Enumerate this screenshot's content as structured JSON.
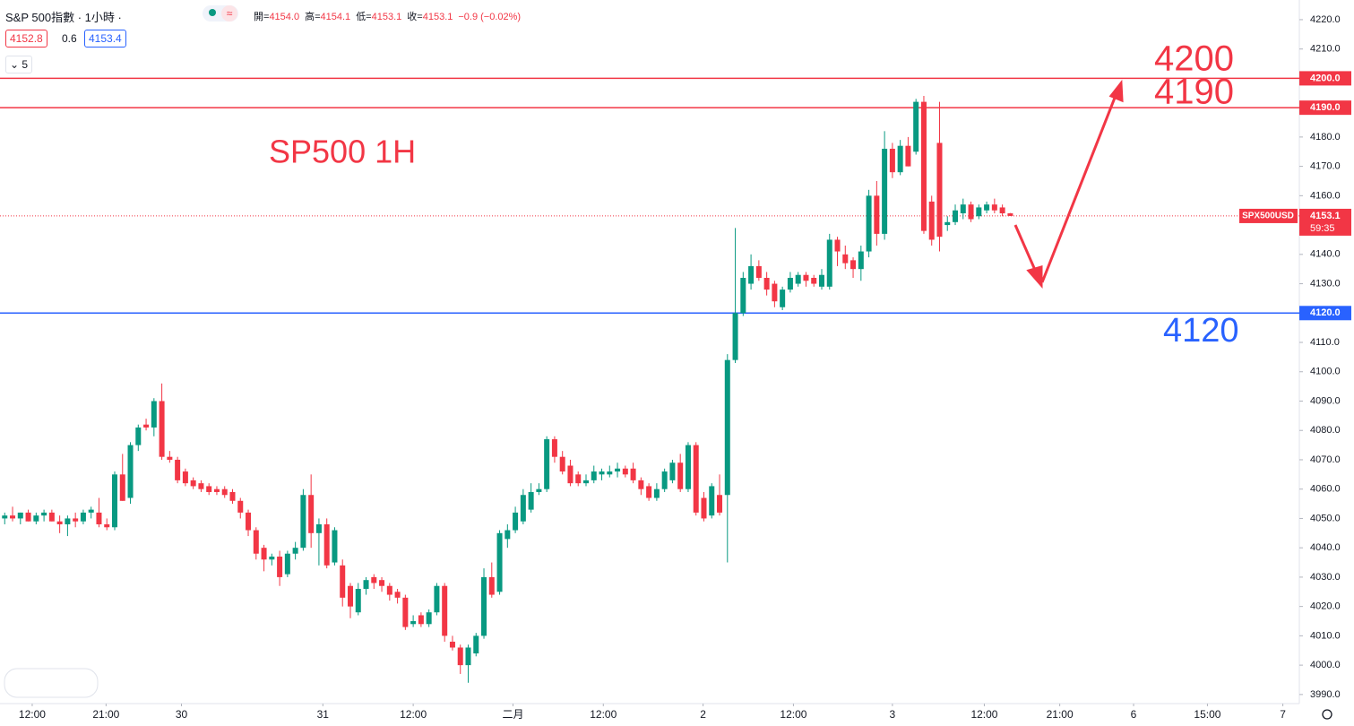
{
  "header": {
    "symbol": "S&P 500指數 · 1小時 ·",
    "ohlc": [
      {
        "label": "開=",
        "value": "4154.0"
      },
      {
        "label": "高=",
        "value": "4154.1"
      },
      {
        "label": "低=",
        "value": "4153.1"
      },
      {
        "label": "收=",
        "value": "4153.1"
      }
    ],
    "change": "−0.9 (−0.02%)",
    "bid": "4152.8",
    "spread": "0.6",
    "ask": "4153.4",
    "interval_count": "5"
  },
  "chart_data": {
    "type": "candlestick",
    "up_color": "#089981",
    "down_color": "#f23645",
    "open": [
      4050,
      4051,
      4050,
      4052,
      4049,
      4051,
      4052,
      4049,
      4048,
      4050,
      4049,
      4052,
      4052,
      4048,
      4047,
      4065,
      4057,
      4075,
      4082,
      4081,
      4090,
      4071,
      4070,
      4066,
      4063,
      4062,
      4061,
      4060,
      4060,
      4059,
      4056,
      4052,
      4046,
      4040,
      4036,
      4037,
      4031,
      4038,
      4040,
      4058,
      4045,
      4048,
      4035,
      4034,
      4027,
      4018,
      4026,
      4030,
      4029,
      4027,
      4025,
      4023,
      4014,
      4017,
      4014,
      4018,
      4027,
      4008,
      4006,
      4000,
      4004,
      4010,
      4030,
      4025,
      4043,
      4046,
      4049,
      4053,
      4059,
      4060,
      4077,
      4071,
      4068,
      4065,
      4062,
      4063,
      4065,
      4065,
      4066,
      4067,
      4067,
      4063,
      4061,
      4057,
      4060,
      4063,
      4069,
      4060,
      4075,
      4057,
      4051,
      4058,
      4058,
      4104,
      4120,
      4130,
      4136,
      4132,
      4130,
      4122,
      4128,
      4130,
      4133,
      4132,
      4129,
      4129,
      4145,
      4140,
      4138,
      4135,
      4141,
      4160,
      4147,
      4176,
      4168,
      4177,
      4175,
      4192,
      4158,
      4178,
      4150,
      4151,
      4154,
      4157,
      4153,
      4155,
      4157,
      4156,
      4154.0
    ],
    "high": [
      4052,
      4054,
      4052,
      4053,
      4052,
      4053,
      4053,
      4051,
      4051,
      4052,
      4053,
      4054,
      4057,
      4050,
      4066,
      4072,
      4076,
      4082,
      4084,
      4091,
      4096,
      4073,
      4071,
      4067,
      4064,
      4063,
      4062,
      4061,
      4061,
      4060,
      4057,
      4053,
      4047,
      4041,
      4038,
      4039,
      4039,
      4042,
      4060,
      4065,
      4050,
      4050,
      4047,
      4036,
      4028,
      4028,
      4030,
      4031,
      4030,
      4028,
      4026,
      4024,
      4017,
      4018,
      4019,
      4028,
      4028,
      4010,
      4007,
      4007,
      4011,
      4033,
      4035,
      4046,
      4048,
      4054,
      4060,
      4062,
      4062,
      4078,
      4078,
      4073,
      4070,
      4066,
      4065,
      4068,
      4067,
      4068,
      4069,
      4068,
      4069,
      4064,
      4062,
      4062,
      4067,
      4070,
      4072,
      4076,
      4076,
      4059,
      4062,
      4065,
      4106,
      4149,
      4134,
      4140,
      4138,
      4134,
      4131,
      4129,
      4134,
      4134,
      4134,
      4133,
      4135,
      4147,
      4146,
      4143,
      4139,
      4143,
      4162,
      4165,
      4182,
      4178,
      4179,
      4180,
      4193,
      4194,
      4160,
      4192,
      4153,
      4157,
      4159,
      4158,
      4157,
      4158,
      4159,
      4157,
      4154.1
    ],
    "low": [
      4048,
      4049,
      4048,
      4049,
      4048,
      4049,
      4049,
      4045,
      4044,
      4047,
      4048,
      4050,
      4047,
      4046,
      4046,
      4056,
      4055,
      4073,
      4080,
      4078,
      4070,
      4069,
      4062,
      4061,
      4060,
      4059,
      4058,
      4058,
      4057,
      4055,
      4050,
      4044,
      4036,
      4032,
      4034,
      4027,
      4030,
      4036,
      4039,
      4040,
      4034,
      4033,
      4034,
      4020,
      4016,
      4017,
      4024,
      4026,
      4025,
      4022,
      4021,
      4012,
      4013,
      4013,
      4013,
      4017,
      4008,
      4005,
      3997,
      3994,
      4003,
      4009,
      4023,
      4024,
      4040,
      4045,
      4048,
      4052,
      4058,
      4059,
      4069,
      4065,
      4061,
      4061,
      4061,
      4062,
      4063,
      4064,
      4064,
      4064,
      4062,
      4058,
      4056,
      4056,
      4059,
      4062,
      4059,
      4059,
      4051,
      4049,
      4050,
      4051,
      4035,
      4103,
      4119,
      4128,
      4131,
      4126,
      4122,
      4121,
      4127,
      4129,
      4129,
      4129,
      4128,
      4128,
      4136,
      4135,
      4132,
      4131,
      4139,
      4143,
      4145,
      4166,
      4167,
      4170,
      4174,
      4147,
      4143,
      4141,
      4148,
      4150,
      4152,
      4151,
      4152,
      4154,
      4154,
      4153,
      4153.1
    ],
    "close": [
      4051,
      4050,
      4052,
      4049,
      4051,
      4052,
      4049,
      4048,
      4050,
      4049,
      4052,
      4053,
      4048,
      4047,
      4065,
      4056,
      4075,
      4081,
      4081,
      4090,
      4071,
      4070,
      4063,
      4062,
      4061,
      4060,
      4059,
      4059,
      4058,
      4056,
      4052,
      4046,
      4038,
      4036,
      4037,
      4030,
      4038,
      4040,
      4058,
      4045,
      4048,
      4034,
      4046,
      4023,
      4020,
      4026,
      4029,
      4028,
      4027,
      4024,
      4023,
      4013,
      4015,
      4014,
      4018,
      4027,
      4010,
      4006,
      4000,
      4006,
      4010,
      4030,
      4024,
      4045,
      4046,
      4052,
      4058,
      4059,
      4060,
      4077,
      4071,
      4066,
      4062,
      4062,
      4063,
      4066,
      4066,
      4066,
      4067,
      4065,
      4063,
      4060,
      4057,
      4060,
      4066,
      4069,
      4060,
      4075,
      4052,
      4050,
      4061,
      4052,
      4104,
      4120,
      4132,
      4136,
      4132,
      4128,
      4124,
      4128,
      4132,
      4133,
      4131,
      4130,
      4133,
      4145,
      4141,
      4137,
      4135,
      4141,
      4160,
      4147,
      4176,
      4168,
      4177,
      4170,
      4192,
      4148,
      4145,
      4146,
      4151,
      4155,
      4157,
      4152,
      4156,
      4157,
      4155,
      4154,
      4153.1
    ],
    "xlim": [
      -0.6,
      164.8
    ],
    "xticks": [
      {
        "value": 3.5,
        "label": "12:00"
      },
      {
        "value": 12.9,
        "label": "21:00"
      },
      {
        "value": 22.5,
        "label": "30"
      },
      {
        "value": 40.5,
        "label": "31"
      },
      {
        "value": 52.0,
        "label": "12:00"
      },
      {
        "value": 64.7,
        "label": "二月"
      },
      {
        "value": 76.2,
        "label": "12:00"
      },
      {
        "value": 88.9,
        "label": "2"
      },
      {
        "value": 100.4,
        "label": "12:00"
      },
      {
        "value": 113.0,
        "label": "3"
      },
      {
        "value": 124.7,
        "label": "12:00"
      },
      {
        "value": 134.3,
        "label": "21:00"
      },
      {
        "value": 143.7,
        "label": "6"
      },
      {
        "value": 153.1,
        "label": "15:00"
      },
      {
        "value": 162.7,
        "label": "7"
      }
    ],
    "ylim": [
      3986.9,
      4226.7
    ],
    "yticks": [
      {
        "value": 3990,
        "label": "3990.0"
      },
      {
        "value": 4000,
        "label": "4000.0"
      },
      {
        "value": 4010,
        "label": "4010.0"
      },
      {
        "value": 4020,
        "label": "4020.0"
      },
      {
        "value": 4030,
        "label": "4030.0"
      },
      {
        "value": 4040,
        "label": "4040.0"
      },
      {
        "value": 4050,
        "label": "4050.0"
      },
      {
        "value": 4060,
        "label": "4060.0"
      },
      {
        "value": 4070,
        "label": "4070.0"
      },
      {
        "value": 4080,
        "label": "4080.0"
      },
      {
        "value": 4090,
        "label": "4090.0"
      },
      {
        "value": 4100,
        "label": "4100.0"
      },
      {
        "value": 4110,
        "label": "4110.0"
      },
      {
        "value": 4120,
        "label": "4120.0"
      },
      {
        "value": 4130,
        "label": "4130.0"
      },
      {
        "value": 4140,
        "label": "4140.0"
      },
      {
        "value": 4150,
        "label": "4150.0"
      },
      {
        "value": 4160,
        "label": "4160.0"
      },
      {
        "value": 4170,
        "label": "4170.0"
      },
      {
        "value": 4180,
        "label": "4180.0"
      },
      {
        "value": 4190,
        "label": "4190.0"
      },
      {
        "value": 4200,
        "label": "4200.0"
      },
      {
        "value": 4210,
        "label": "4210.0"
      },
      {
        "value": 4220,
        "label": "4220.0"
      }
    ],
    "grid": false,
    "levels": [
      {
        "value": 4200,
        "label": "4200.0",
        "color": "#f23645"
      },
      {
        "value": 4190,
        "label": "4190.0",
        "color": "#f23645"
      },
      {
        "value": 4120,
        "label": "4120.0",
        "color": "#2962ff"
      }
    ],
    "last": {
      "value": 4153.1,
      "symbol": "SPX500USD",
      "countdown": "59:35",
      "color": "#f23645"
    },
    "annotations": [
      {
        "text": "SP500 1H",
        "color": "#f23645"
      },
      {
        "text": "4200",
        "color": "#f23645"
      },
      {
        "text": "4190",
        "color": "#f23645"
      },
      {
        "text": "4120",
        "color": "#2962ff"
      }
    ]
  }
}
